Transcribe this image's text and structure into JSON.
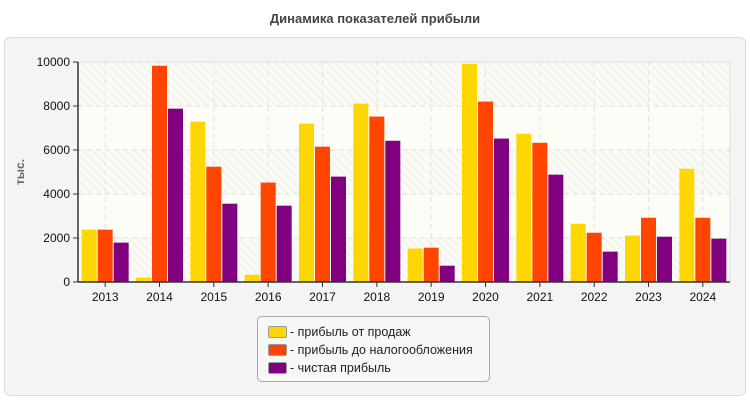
{
  "chart_data": {
    "type": "bar",
    "title": "Динамика показателей прибыли",
    "xlabel": "",
    "ylabel": "тыс.",
    "ylim": [
      0,
      10000
    ],
    "yticks": [
      "0",
      "2000",
      "4000",
      "6000",
      "8000",
      "10000"
    ],
    "grid": true,
    "legend_position": "bottom-center",
    "categories": [
      "2013",
      "2014",
      "2015",
      "2016",
      "2017",
      "2018",
      "2019",
      "2020",
      "2021",
      "2022",
      "2023",
      "2024"
    ],
    "series": [
      {
        "name": "- прибыль от продаж",
        "color": "#FFD700",
        "values": [
          2380,
          200,
          7290,
          330,
          7200,
          8110,
          1520,
          9920,
          6740,
          2650,
          2110,
          5150
        ]
      },
      {
        "name": "- прибыль до налогообложения",
        "color": "#FF4500",
        "values": [
          2380,
          9830,
          5240,
          4520,
          6150,
          7520,
          1560,
          8200,
          6330,
          2240,
          2920,
          2920
        ]
      },
      {
        "name": "- чистая прибыль",
        "color": "#800080",
        "values": [
          1790,
          7880,
          3560,
          3470,
          4790,
          6420,
          740,
          6520,
          4880,
          1380,
          2060,
          1970
        ]
      }
    ]
  }
}
